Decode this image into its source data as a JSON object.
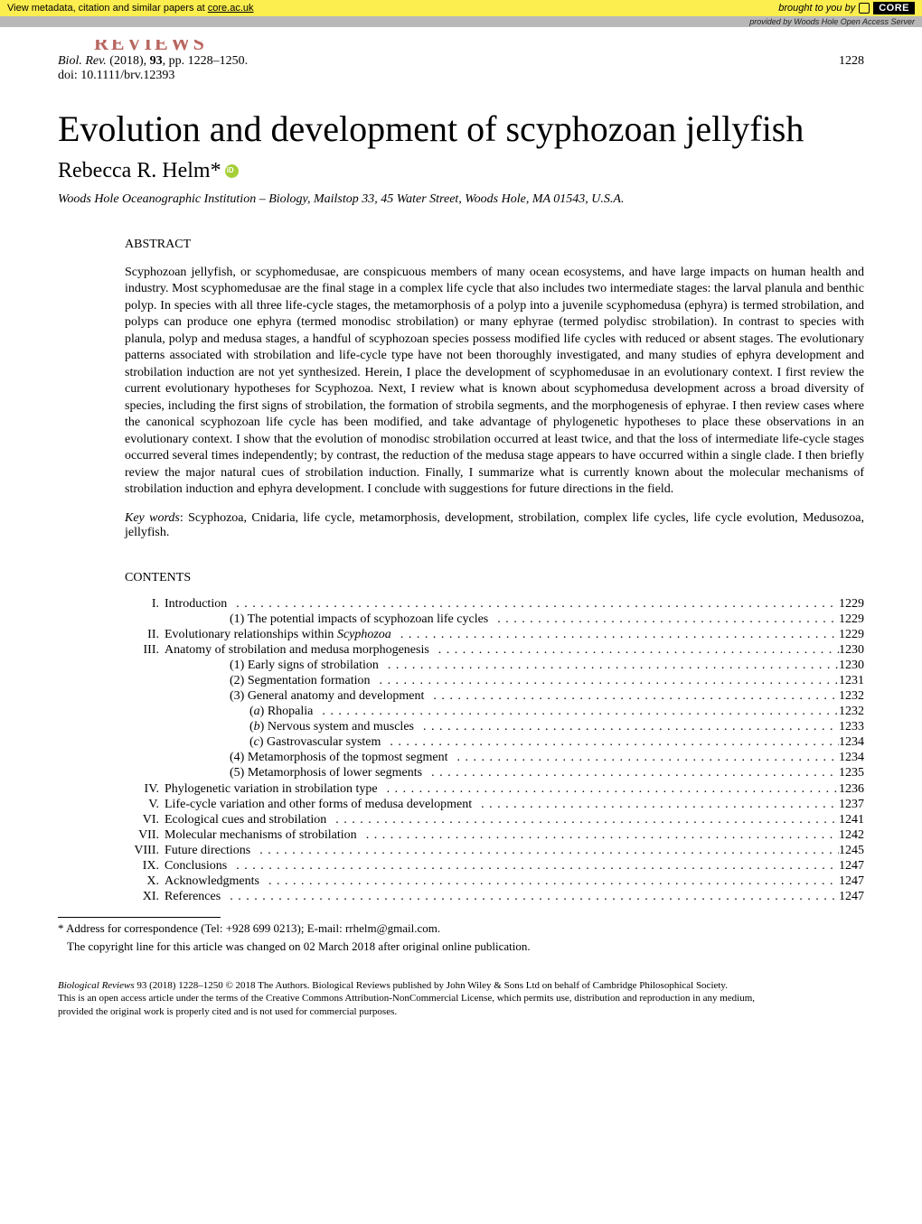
{
  "banner": {
    "left_prefix": "View metadata, citation and similar papers at ",
    "link_text": "core.ac.uk",
    "right_text": "brought to you by",
    "core_label": "CORE",
    "provided_by": "provided by Woods Hole Open Access Server"
  },
  "header": {
    "reviews_cut": "REVIEWS",
    "journal": "Biol. Rev.",
    "year": "(2018),",
    "volume": "93",
    "pages": ", pp. 1228–1250.",
    "page_number": "1228",
    "doi": "doi: 10.1111/brv.12393"
  },
  "title": "Evolution and development of scyphozoan jellyfish",
  "author": "Rebecca R. Helm*",
  "affiliation": "Woods Hole Oceanographic Institution – Biology, Mailstop 33, 45 Water Street, Woods Hole, MA 01543, U.S.A.",
  "abstract_label": "ABSTRACT",
  "abstract_text": "Scyphozoan jellyfish, or scyphomedusae, are conspicuous members of many ocean ecosystems, and have large impacts on human health and industry. Most scyphomedusae are the final stage in a complex life cycle that also includes two intermediate stages: the larval planula and benthic polyp. In species with all three life-cycle stages, the metamorphosis of a polyp into a juvenile scyphomedusa (ephyra) is termed strobilation, and polyps can produce one ephyra (termed monodisc strobilation) or many ephyrae (termed polydisc strobilation). In contrast to species with planula, polyp and medusa stages, a handful of scyphozoan species possess modified life cycles with reduced or absent stages. The evolutionary patterns associated with strobilation and life-cycle type have not been thoroughly investigated, and many studies of ephyra development and strobilation induction are not yet synthesized. Herein, I place the development of scyphomedusae in an evolutionary context. I first review the current evolutionary hypotheses for Scyphozoa. Next, I review what is known about scyphomedusa development across a broad diversity of species, including the first signs of strobilation, the formation of strobila segments, and the morphogenesis of ephyrae. I then review cases where the canonical scyphozoan life cycle has been modified, and take advantage of phylogenetic hypotheses to place these observations in an evolutionary context. I show that the evolution of monodisc strobilation occurred at least twice, and that the loss of intermediate life-cycle stages occurred several times independently; by contrast, the reduction of the medusa stage appears to have occurred within a single clade. I then briefly review the major natural cues of strobilation induction. Finally, I summarize what is currently known about the molecular mechanisms of strobilation induction and ephyra development. I conclude with suggestions for future directions in the field.",
  "keywords_label": "Key words",
  "keywords_text": ": Scyphozoa, Cnidaria, life cycle, metamorphosis, development, strobilation, complex life cycles, life cycle evolution, Medusozoa, jellyfish.",
  "contents_label": "CONTENTS",
  "toc": [
    {
      "roman": "I.",
      "label": "Introduction",
      "page": "1229",
      "indent": 0
    },
    {
      "roman": "",
      "label": "(1) The potential impacts of scyphozoan life cycles",
      "page": "1229",
      "indent": 1
    },
    {
      "roman": "II.",
      "label": "Evolutionary relationships within Scyphozoa",
      "page": "1229",
      "indent": 0,
      "italic_tail": "Scyphozoa"
    },
    {
      "roman": "III.",
      "label": "Anatomy of strobilation and medusa morphogenesis",
      "page": "1230",
      "indent": 0
    },
    {
      "roman": "",
      "label": "(1) Early signs of strobilation",
      "page": "1230",
      "indent": 1
    },
    {
      "roman": "",
      "label": "(2) Segmentation formation",
      "page": "1231",
      "indent": 1
    },
    {
      "roman": "",
      "label": "(3) General anatomy and development",
      "page": "1232",
      "indent": 1
    },
    {
      "roman": "",
      "label": "(a) Rhopalia",
      "page": "1232",
      "indent": 2,
      "letter_italic": true
    },
    {
      "roman": "",
      "label": "(b) Nervous system and muscles",
      "page": "1233",
      "indent": 2,
      "letter_italic": true
    },
    {
      "roman": "",
      "label": "(c) Gastrovascular system",
      "page": "1234",
      "indent": 2,
      "letter_italic": true
    },
    {
      "roman": "",
      "label": "(4) Metamorphosis of the topmost segment",
      "page": "1234",
      "indent": 1
    },
    {
      "roman": "",
      "label": "(5) Metamorphosis of lower segments",
      "page": "1235",
      "indent": 1
    },
    {
      "roman": "IV.",
      "label": "Phylogenetic variation in strobilation type",
      "page": "1236",
      "indent": 0
    },
    {
      "roman": "V.",
      "label": "Life-cycle variation and other forms of medusa development",
      "page": "1237",
      "indent": 0
    },
    {
      "roman": "VI.",
      "label": "Ecological cues and strobilation",
      "page": "1241",
      "indent": 0
    },
    {
      "roman": "VII.",
      "label": "Molecular mechanisms of strobilation",
      "page": "1242",
      "indent": 0
    },
    {
      "roman": "VIII.",
      "label": "Future directions",
      "page": "1245",
      "indent": 0
    },
    {
      "roman": "IX.",
      "label": "Conclusions",
      "page": "1247",
      "indent": 0
    },
    {
      "roman": "X.",
      "label": "Acknowledgments",
      "page": "1247",
      "indent": 0
    },
    {
      "roman": "XI.",
      "label": "References",
      "page": "1247",
      "indent": 0
    }
  ],
  "footnote": {
    "correspondence": "* Address for correspondence (Tel: +928 699 0213); E-mail: rrhelm@gmail.com.",
    "copyright_note": "The copyright line for this article was changed on 02 March 2018 after original online publication."
  },
  "footer": {
    "line1_italic": "Biological Reviews",
    "line1_rest": " 93 (2018) 1228–1250 © 2018 The Authors. Biological Reviews published by John Wiley & Sons Ltd on behalf of Cambridge Philosophical Society.",
    "line2": "This is an open access article under the terms of the Creative Commons Attribution-NonCommercial License, which permits use, distribution and reproduction in any medium,",
    "line3": "provided the original work is properly cited and is not used for commercial purposes."
  },
  "colors": {
    "banner_bg": "#fcee4f",
    "provided_bg": "#b8b8b8",
    "reviews_color": "#b8665f",
    "orcid_green": "#a6ce39"
  }
}
